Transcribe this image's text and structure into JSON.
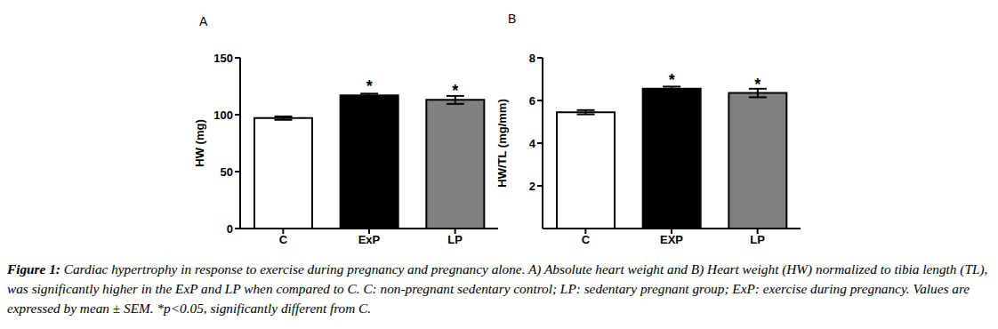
{
  "chart_data": [
    {
      "type": "bar",
      "title": "A",
      "categories": [
        "C",
        "ExP",
        "LP"
      ],
      "values": [
        97,
        117,
        113
      ],
      "errors": [
        1.5,
        1.5,
        3.5
      ],
      "colors": [
        "#ffffff",
        "#000000",
        "#808080"
      ],
      "ylabel": "HW (mg)",
      "ylim": [
        0,
        150
      ],
      "yticks": [
        0,
        50,
        100,
        150
      ],
      "annotations": [
        {
          "category": "ExP",
          "text": "*"
        },
        {
          "category": "LP",
          "text": "*"
        }
      ]
    },
    {
      "type": "bar",
      "title": "B",
      "categories": [
        "C",
        "EXP",
        "LP"
      ],
      "values": [
        5.45,
        6.55,
        6.35
      ],
      "errors": [
        0.1,
        0.1,
        0.2
      ],
      "colors": [
        "#ffffff",
        "#000000",
        "#808080"
      ],
      "ylabel": "HW/TL (mg/mm)",
      "ylim": [
        0,
        8
      ],
      "yticks": [
        2,
        4,
        6,
        8
      ],
      "annotations": [
        {
          "category": "EXP",
          "text": "*"
        },
        {
          "category": "LP",
          "text": "*"
        }
      ]
    }
  ],
  "caption": {
    "label": "Figure 1:",
    "text": "Cardiac hypertrophy in response to exercise during pregnancy and pregnancy alone. A) Absolute heart weight and B) Heart weight (HW) normalized to tibia length (TL), was significantly higher in the ExP and LP when compared to C. C: non-pregnant sedentary control; LP: sedentary pregnant group; ExP: exercise during pregnancy. Values are expressed by mean ± SEM. *p<0.05, significantly different from C."
  }
}
